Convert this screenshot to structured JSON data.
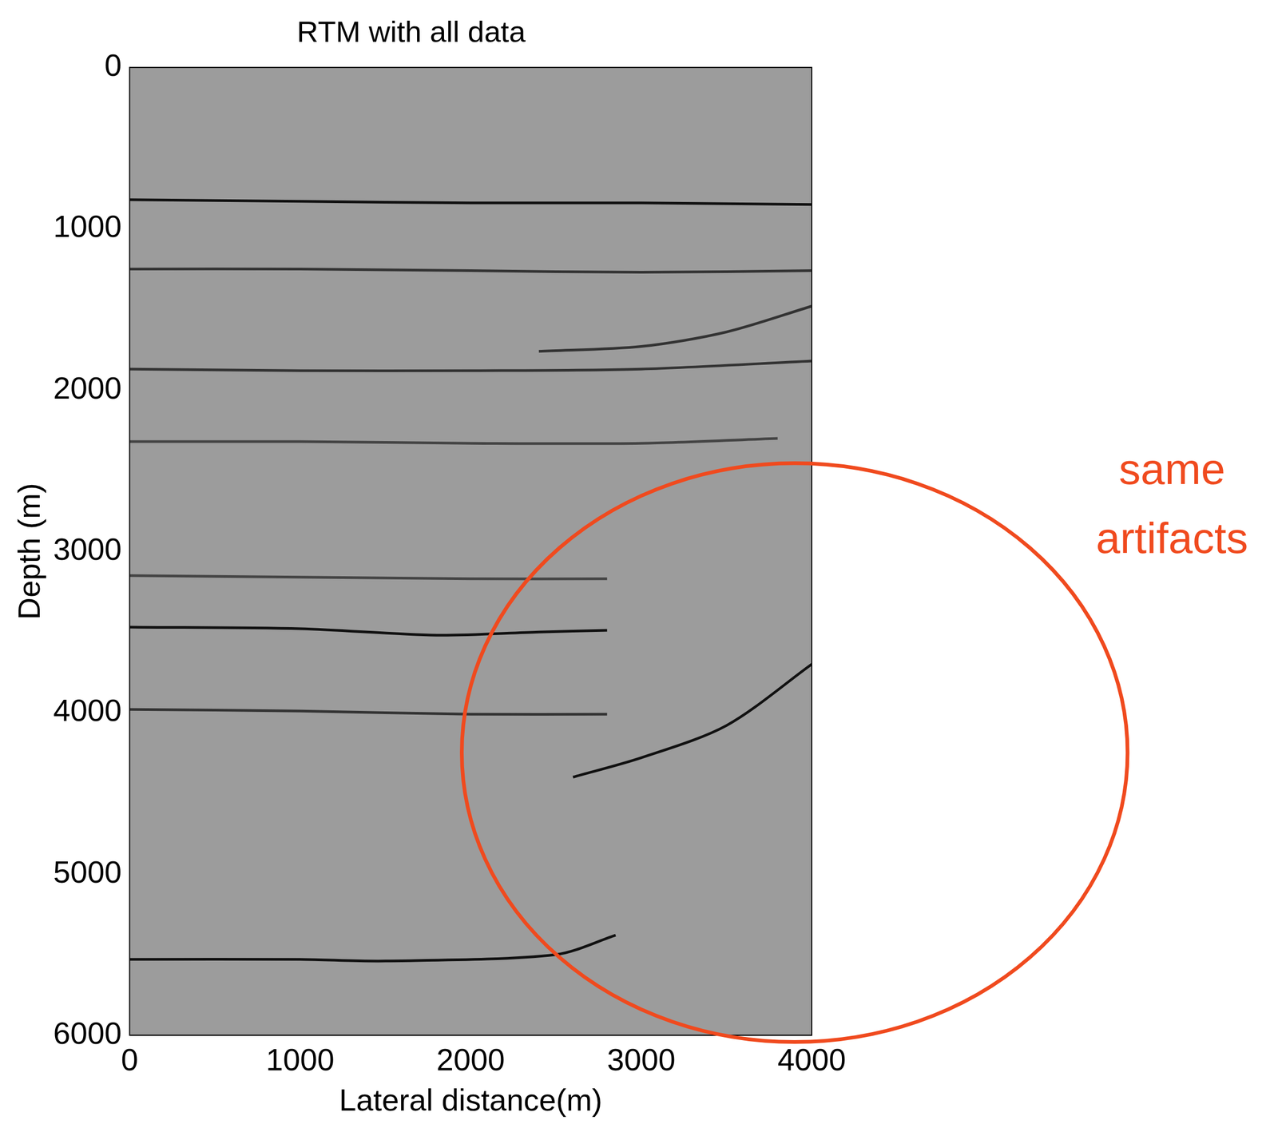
{
  "chart_data": {
    "type": "line",
    "title": "RTM with all data",
    "x_label": "Lateral distance(m)",
    "y_label": "Depth (m)",
    "xlim": [
      0,
      4000
    ],
    "ylim": [
      0,
      6000
    ],
    "xticks": [
      0,
      1000,
      2000,
      3000,
      4000
    ],
    "yticks": [
      0,
      1000,
      2000,
      3000,
      4000,
      5000,
      6000
    ],
    "grid": false,
    "series": [
      {
        "color": "#111111",
        "x": [
          0,
          1000,
          2000,
          3000,
          4000
        ],
        "values": [
          820,
          830,
          840,
          840,
          850
        ]
      },
      {
        "color": "#333333",
        "x": [
          0,
          1000,
          2000,
          3000,
          4000
        ],
        "values": [
          1250,
          1250,
          1260,
          1270,
          1260
        ]
      },
      {
        "color": "#333333",
        "x": [
          2400,
          3000,
          3500,
          4000
        ],
        "values": [
          1760,
          1730,
          1640,
          1480
        ]
      },
      {
        "color": "#333333",
        "x": [
          0,
          1000,
          2000,
          3000,
          4000
        ],
        "values": [
          1870,
          1880,
          1880,
          1870,
          1820
        ]
      },
      {
        "color": "#444444",
        "x": [
          0,
          1000,
          2000,
          3000,
          3800
        ],
        "values": [
          2320,
          2320,
          2330,
          2330,
          2300
        ]
      },
      {
        "color": "#444444",
        "x": [
          0,
          1000,
          2000,
          2800
        ],
        "values": [
          3150,
          3160,
          3170,
          3170
        ]
      },
      {
        "color": "#111111",
        "x": [
          0,
          1000,
          1800,
          2400,
          2800
        ],
        "values": [
          3470,
          3480,
          3520,
          3500,
          3490
        ]
      },
      {
        "color": "#333333",
        "x": [
          0,
          1000,
          2000,
          2800
        ],
        "values": [
          3980,
          3990,
          4010,
          4010
        ]
      },
      {
        "color": "#111111",
        "x": [
          2600,
          3000,
          3500,
          4000
        ],
        "values": [
          4400,
          4280,
          4080,
          3700
        ]
      },
      {
        "color": "#111111",
        "x": [
          0,
          1000,
          1500,
          2500,
          2850
        ],
        "values": [
          5530,
          5530,
          5540,
          5500,
          5380
        ]
      }
    ],
    "annotations": [
      {
        "text": "same artifacts",
        "color": "#f04a1e"
      }
    ]
  }
}
